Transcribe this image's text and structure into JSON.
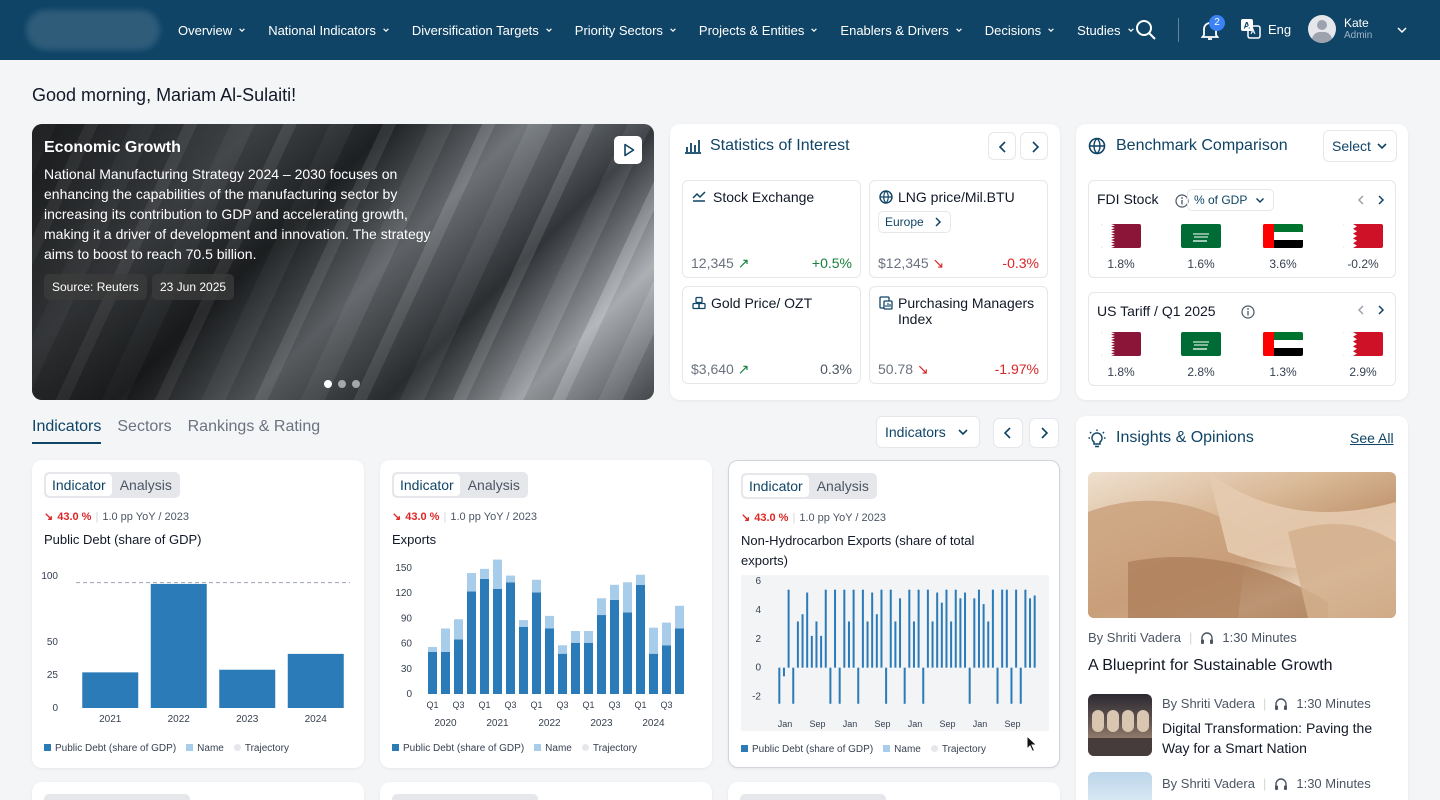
{
  "nav": {
    "menu": [
      "Overview",
      "National Indicators",
      "Diversification Targets",
      "Priority Sectors",
      "Projects & Entities",
      "Enablers & Drivers",
      "Decisions",
      "Studies"
    ],
    "notifications": "2",
    "language": "Eng",
    "user": {
      "name": "Kate",
      "role": "Admin"
    }
  },
  "greeting": "Good morning, Mariam Al-Sulaiti!",
  "hero": {
    "title": "Economic Growth",
    "text": "National Manufacturing Strategy 2024 – 2030 focuses on enhancing the capabilities of the manufacturing sector by increasing its contribution to GDP and accelerating growth, making it a driver of development and innovation. The strategy aims to boost to reach 70.5 billion.",
    "source": "Source: Reuters",
    "date": "23 Jun 2025",
    "slides": 3,
    "active_slide": 1
  },
  "stats": {
    "title": "Statistics of Interest",
    "items": [
      {
        "name": "Stock Exchange",
        "value": "12,345",
        "change": "+0.5%",
        "trend": "up"
      },
      {
        "name": "LNG price/Mil.BTU",
        "region": "Europe",
        "value": "$12,345",
        "change": "-0.3%",
        "trend": "down"
      },
      {
        "name": "Gold Price/ OZT",
        "value": "$3,640",
        "change": "0.3%",
        "trend": "up"
      },
      {
        "name": "Purchasing Managers Index",
        "value": "50.78",
        "change": "-1.97%",
        "trend": "down"
      }
    ]
  },
  "benchmark": {
    "title": "Benchmark Comparison",
    "select": "Select",
    "fdi": {
      "title": "FDI Stock",
      "unit": "% of GDP",
      "values": [
        "1.8%",
        "1.6%",
        "3.6%",
        "-0.2%"
      ]
    },
    "tariff": {
      "title": "US Tariff / Q1 2025",
      "values": [
        "1.8%",
        "2.8%",
        "1.3%",
        "2.9%"
      ]
    }
  },
  "tabs": [
    "Indicators",
    "Sectors",
    "Rankings & Rating"
  ],
  "indicator_filter": "Indicators",
  "indicator_cards": [
    {
      "seg": [
        "Indicator",
        "Analysis"
      ],
      "pct": "43.0 %",
      "meta": "1.0 pp YoY / 2023",
      "title": "Public Debt (share of GDP)",
      "legend": [
        "Public Debt (share of GDP)",
        "Name",
        "Trajectory"
      ]
    },
    {
      "seg": [
        "Indicator",
        "Analysis"
      ],
      "pct": "43.0 %",
      "meta": "1.0 pp YoY / 2023",
      "title": "Exports",
      "legend": [
        "Public Debt (share of GDP)",
        "Name",
        "Trajectory"
      ]
    },
    {
      "seg": [
        "Indicator",
        "Analysis"
      ],
      "pct": "43.0 %",
      "meta": "1.0 pp YoY / 2023",
      "title": "Non-Hydrocarbon Exports (share of total exports)",
      "legend": [
        "Public Debt (share of GDP)",
        "Name",
        "Trajectory"
      ]
    }
  ],
  "insights": {
    "title": "Insights & Opinions",
    "see_all": "See All",
    "items": [
      {
        "author": "By Shriti Vadera",
        "duration": "1:30 Minutes",
        "title": "A Blueprint for Sustainable Growth"
      },
      {
        "author": "By Shriti Vadera",
        "duration": "1:30 Minutes",
        "title": "Digital Transformation: Paving the Way for a Smart Nation"
      },
      {
        "author": "By Shriti Vadera",
        "duration": "1:30 Minutes",
        "title": ""
      }
    ]
  },
  "colors": {
    "nav": "#0f4466",
    "bar": "#2b7bb9",
    "bar_light": "#a8cdea",
    "up": "#15803d",
    "down": "#dc2626"
  },
  "chart_data": [
    {
      "type": "bar",
      "categories": [
        "2021",
        "2022",
        "2023",
        "2024"
      ],
      "series": [
        {
          "name": "Public Debt (share of GDP)",
          "values": [
            27,
            94,
            29,
            41
          ]
        }
      ],
      "ylim": [
        0,
        100
      ],
      "yticks": [
        0,
        25,
        50,
        100
      ],
      "reference_line": 95
    },
    {
      "type": "bar",
      "stacked": true,
      "categories": [
        "Q1-2020",
        "Q2-2020",
        "Q3-2020",
        "Q4-2020",
        "Q1-2021",
        "Q2-2021",
        "Q3-2021",
        "Q4-2021",
        "Q1-2022",
        "Q2-2022",
        "Q3-2022",
        "Q4-2022",
        "Q1-2023",
        "Q2-2023",
        "Q3-2023",
        "Q4-2023",
        "Q1-2024",
        "Q2-2024",
        "Q3-2024",
        "Q4-2024"
      ],
      "x_tick_labels": [
        "Q1",
        "Q3",
        "Q1",
        "Q3",
        "Q1",
        "Q3",
        "Q1",
        "Q3",
        "Q1",
        "Q3"
      ],
      "x_group_labels": [
        "2020",
        "2021",
        "2022",
        "2023",
        "2024"
      ],
      "series": [
        {
          "name": "Public Debt (share of GDP)",
          "values": [
            50,
            50,
            65,
            122,
            137,
            125,
            133,
            80,
            121,
            78,
            48,
            61,
            61,
            94,
            112,
            97,
            130,
            48,
            58,
            78
          ]
        },
        {
          "name": "Name",
          "values": [
            6,
            28,
            24,
            22,
            12,
            35,
            8,
            8,
            15,
            15,
            10,
            14,
            14,
            20,
            18,
            36,
            12,
            31,
            27,
            27
          ]
        }
      ],
      "ylim": [
        0,
        150
      ],
      "yticks": [
        0,
        30,
        60,
        90,
        120,
        150
      ]
    },
    {
      "type": "bar",
      "x_tick_labels": [
        "Jan",
        "Sep",
        "Jan",
        "Sep",
        "Jan",
        "Sep",
        "Jan",
        "Sep"
      ],
      "series": [
        {
          "name": "Public Debt (share of GDP)",
          "values": [
            -2.5,
            -0.6,
            5.4,
            -2.5,
            3.2,
            3.7,
            5.2,
            2.2,
            3.2,
            2.2,
            5.4,
            -2.5,
            5.4,
            -2.5,
            5.4,
            3.2,
            5.4,
            -2.5,
            5.4,
            3.2,
            5.2,
            3.7,
            5.4,
            -2.5,
            5.4,
            3.2,
            4.8,
            -2.5,
            5.4,
            3.2,
            5.4,
            -2.5,
            5.4,
            3.2,
            5.2,
            4.5,
            5.4,
            3.2,
            5.4,
            4.8,
            5.2,
            -2.5,
            4.8,
            5.4,
            4.4,
            3.2,
            5.4,
            -2.5,
            5.4,
            5.4,
            -2.5,
            5.4,
            -2.5,
            5.4,
            4.8,
            5.0
          ]
        }
      ],
      "ylim": [
        -3,
        6
      ],
      "yticks": [
        -2,
        0,
        2,
        4,
        6
      ]
    }
  ]
}
